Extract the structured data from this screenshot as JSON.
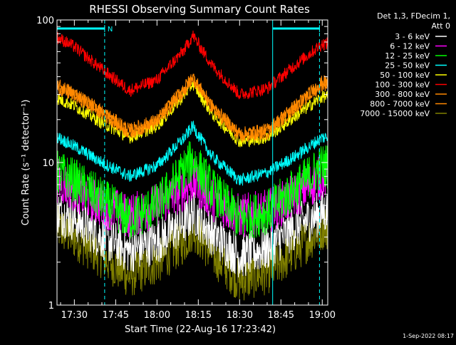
{
  "chart_data": {
    "type": "line",
    "title": "RHESSI Observing Summary Count Rates",
    "xlabel": "Start Time (22-Aug-16 17:23:42)",
    "ylabel": "Count Rate (s⁻¹ detector⁻¹)",
    "yscale": "log",
    "xlim": [
      "17:23:42",
      "19:02:00"
    ],
    "ylim": [
      1,
      100
    ],
    "x_ticks": [
      "17:30",
      "17:45",
      "18:00",
      "18:15",
      "18:30",
      "18:45",
      "19:00"
    ],
    "y_ticks": [
      "1",
      "10",
      "100"
    ],
    "legend_placement": "top-right outside plot",
    "legend_header": [
      "Det 1,3, FDecim 1,",
      "Att 0"
    ],
    "timestamp": "1-Sep-2022 08:17",
    "annotations": [
      {
        "type": "flag-bar",
        "label": "N",
        "start": "17:23:42",
        "end": "17:41:00"
      },
      {
        "type": "flag-bar",
        "label": "",
        "start": "18:42:00",
        "end": "18:59:00"
      }
    ],
    "night_boundaries": [
      "17:41:00",
      "18:59:00"
    ],
    "day_boundary": "18:42:00",
    "series": [
      {
        "name": "3 - 6 keV",
        "color": "#ffffff",
        "x": [
          "17:24",
          "17:30",
          "17:40",
          "17:50",
          "18:00",
          "18:10",
          "18:13",
          "18:20",
          "18:30",
          "18:40",
          "18:50",
          "19:00"
        ],
        "y": [
          4.5,
          4.0,
          3.0,
          2.4,
          2.8,
          3.8,
          4.5,
          3.2,
          2.2,
          2.5,
          3.5,
          4.5
        ]
      },
      {
        "name": "6 - 12 keV",
        "color": "#ff00ff",
        "x": [
          "17:24",
          "17:30",
          "17:40",
          "17:50",
          "18:00",
          "18:10",
          "18:13",
          "18:20",
          "18:30",
          "18:40",
          "18:50",
          "19:00"
        ],
        "y": [
          7.5,
          6.5,
          5.0,
          4.2,
          5.0,
          6.6,
          7.5,
          5.6,
          4.2,
          4.5,
          5.8,
          8.0
        ]
      },
      {
        "name": "12 - 25 keV",
        "color": "#00ff00",
        "x": [
          "17:24",
          "17:30",
          "17:40",
          "17:50",
          "18:00",
          "18:10",
          "18:13",
          "18:20",
          "18:30",
          "18:40",
          "18:50",
          "19:00"
        ],
        "y": [
          8.5,
          7.5,
          5.5,
          4.0,
          5.0,
          9.0,
          10.5,
          6.5,
          4.0,
          4.5,
          6.5,
          9.5
        ]
      },
      {
        "name": "25 - 50 keV",
        "color": "#00ffff",
        "x": [
          "17:24",
          "17:30",
          "17:40",
          "17:50",
          "18:00",
          "18:10",
          "18:13",
          "18:20",
          "18:30",
          "18:40",
          "18:50",
          "19:00"
        ],
        "y": [
          15,
          13,
          10,
          8,
          9.5,
          15,
          18,
          11,
          7.5,
          8.5,
          11,
          15
        ]
      },
      {
        "name": "50 - 100 keV",
        "color": "#ffff00",
        "x": [
          "17:24",
          "17:30",
          "17:40",
          "17:50",
          "18:00",
          "18:10",
          "18:13",
          "18:20",
          "18:30",
          "18:40",
          "18:50",
          "19:00"
        ],
        "y": [
          28,
          25,
          19,
          15,
          18,
          30,
          36,
          22,
          14,
          15,
          21,
          29
        ]
      },
      {
        "name": "100 - 300 keV",
        "color": "#ff0000",
        "x": [
          "17:24",
          "17:30",
          "17:40",
          "17:50",
          "18:00",
          "18:10",
          "18:13",
          "18:20",
          "18:30",
          "18:40",
          "18:50",
          "19:00"
        ],
        "y": [
          75,
          65,
          45,
          32,
          38,
          62,
          78,
          48,
          30,
          33,
          48,
          68
        ]
      },
      {
        "name": "300 - 800 keV",
        "color": "#ff8800",
        "x": [
          "17:24",
          "17:30",
          "17:40",
          "17:50",
          "18:00",
          "18:10",
          "18:13",
          "18:20",
          "18:30",
          "18:40",
          "18:50",
          "19:00"
        ],
        "y": [
          35,
          31,
          23,
          17,
          20,
          34,
          40,
          25,
          16,
          17,
          25,
          37
        ]
      },
      {
        "name": "800 - 7000 keV",
        "color": "#ff8800",
        "x": [
          "17:24",
          "17:30",
          "17:40",
          "17:50",
          "18:00",
          "18:10",
          "18:13",
          "18:20",
          "18:30",
          "18:40",
          "18:50",
          "19:00"
        ],
        "y": [
          33,
          29,
          22,
          16,
          19,
          32,
          38,
          24,
          15,
          16,
          24,
          35
        ]
      },
      {
        "name": "7000 - 15000 keV",
        "color": "#808000",
        "x": [
          "17:24",
          "17:30",
          "17:40",
          "17:50",
          "18:00",
          "18:10",
          "18:13",
          "18:20",
          "18:30",
          "18:40",
          "18:50",
          "19:00"
        ],
        "y": [
          3.5,
          3.0,
          2.2,
          1.6,
          2.0,
          2.8,
          3.5,
          2.3,
          1.5,
          1.7,
          2.4,
          3.5
        ]
      }
    ],
    "series_draw_order": [
      8,
      0,
      1,
      2,
      3,
      4,
      6,
      7,
      5
    ]
  }
}
